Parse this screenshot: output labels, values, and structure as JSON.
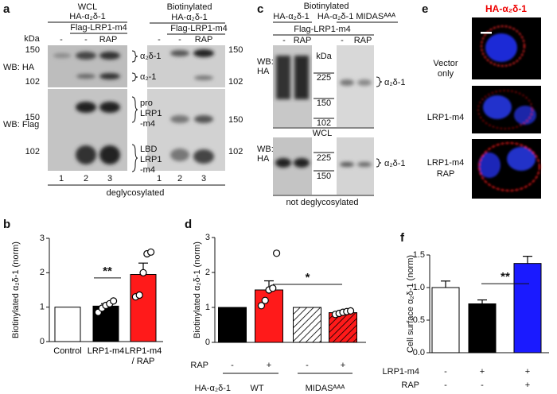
{
  "panel_labels": [
    "a",
    "b",
    "c",
    "d",
    "e",
    "f"
  ],
  "panel_a": {
    "left_title": "WCL",
    "left_construct": "HA-α₂δ-1",
    "left_cotransfect": "Flag-LRP1-m4",
    "right_title": "Biotinylated",
    "right_construct": "HA-α₂δ-1",
    "right_cotransfect": "Flag-LRP1-m4",
    "kda": "kDa",
    "lanes_left": [
      "-",
      "-",
      "RAP"
    ],
    "lanes_right": [
      "-",
      "-",
      "RAP"
    ],
    "wb_top": "WB: HA",
    "wb_bottom": "WB: Flag",
    "markers_top_left": [
      "150",
      "102"
    ],
    "markers_top_right": [
      "150",
      "102"
    ],
    "markers_bottom_left": [
      "150",
      "102"
    ],
    "markers_bottom_right": [
      "150",
      "102"
    ],
    "bands_top": [
      "α₂δ-1",
      "α₂-1"
    ],
    "bands_bottom": [
      "pro",
      "LRP1",
      "-m4",
      "LBD",
      "LRP1",
      "-m4"
    ],
    "lane_numbers_left": [
      "1",
      "2",
      "3"
    ],
    "lane_numbers_right": [
      "1",
      "2",
      "3"
    ],
    "footer": "deglycosylated"
  },
  "panel_c": {
    "title": "Biotinylated",
    "construct_wt": "HA-α₂δ-1",
    "construct_midas": "HA-α₂δ-1 MIDASᴬᴬᴬ",
    "cotransfect": "Flag-LRP1-m4",
    "lanes": [
      "-",
      "RAP",
      "-",
      "RAP"
    ],
    "kda": "kDa",
    "wb_top": [
      "WB:",
      "HA"
    ],
    "wb_bottom": [
      "WB:",
      "HA"
    ],
    "markers_top": [
      "225",
      "150",
      "102"
    ],
    "markers_bottom": [
      "225",
      "150"
    ],
    "band_top": "α₂δ-1",
    "band_bottom": "α₂δ-1",
    "wcl": "WCL",
    "footer": "not deglycosylated"
  },
  "panel_e": {
    "title": "HA-α₂δ-1",
    "labels": [
      "Vector",
      "only",
      "LRP1-m4",
      "LRP1-m4",
      "RAP"
    ]
  },
  "chart_data": [
    {
      "type": "bar",
      "ylabel": "Biotinylated α₂δ-1 (norm)",
      "categories": [
        "Control",
        "LRP1-m4",
        "LRP1-m4\n/ RAP"
      ],
      "values": [
        1.0,
        1.03,
        1.95
      ],
      "errors": [
        null,
        0.07,
        0.33
      ],
      "colors": [
        "#ffffff",
        "#000000",
        "#ff1a1a"
      ],
      "hatch": [
        false,
        false,
        false
      ],
      "points": [
        [],
        [
          0.85,
          0.97,
          1.05,
          1.1,
          1.18
        ],
        [
          1.3,
          1.35,
          2.0,
          2.55,
          2.6
        ]
      ],
      "ylim": [
        0,
        3
      ],
      "yticks": [
        0,
        1,
        2,
        3
      ],
      "significance": "**"
    },
    {
      "type": "bar",
      "ylabel": "Biotinylated α₂δ-1 (norm)",
      "values": [
        1.0,
        1.5,
        1.0,
        0.85
      ],
      "errors": [
        null,
        0.26,
        null,
        0.04
      ],
      "colors": [
        "#000000",
        "#ff1a1a",
        "#ffffff",
        "#ff1a1a"
      ],
      "hatch": [
        false,
        false,
        true,
        true
      ],
      "points": [
        [],
        [
          1.05,
          1.2,
          1.5,
          1.55,
          2.55
        ],
        [],
        [
          0.8,
          0.83,
          0.86,
          0.88,
          0.9
        ]
      ],
      "ylim": [
        0,
        3
      ],
      "yticks": [
        0,
        1,
        2,
        3
      ],
      "significance": "*",
      "rows": [
        {
          "name": "RAP",
          "values": [
            "-",
            "+",
            "-",
            "+"
          ]
        }
      ],
      "group_label": "HA-α₂δ-1",
      "groups": [
        "WT",
        "MIDASᴬᴬᴬ"
      ]
    },
    {
      "type": "bar",
      "ylabel": "Cell surface α₂δ-1 (norm)",
      "values": [
        1.0,
        0.75,
        1.37
      ],
      "errors": [
        0.1,
        0.06,
        0.11
      ],
      "colors": [
        "#ffffff",
        "#000000",
        "#1a1aff"
      ],
      "hatch": [
        false,
        false,
        false
      ],
      "ylim": [
        0,
        1.5
      ],
      "yticks": [
        {
          "value": 0,
          "label": "0.0"
        },
        0.5,
        {
          "value": 1,
          "label": "1.0"
        },
        1.5
      ],
      "significance": "**",
      "rows": [
        {
          "name": "LRP1-m4",
          "values": [
            "-",
            "+",
            "+"
          ]
        },
        {
          "name": "RAP",
          "values": [
            "-",
            "-",
            "+"
          ]
        }
      ]
    }
  ]
}
